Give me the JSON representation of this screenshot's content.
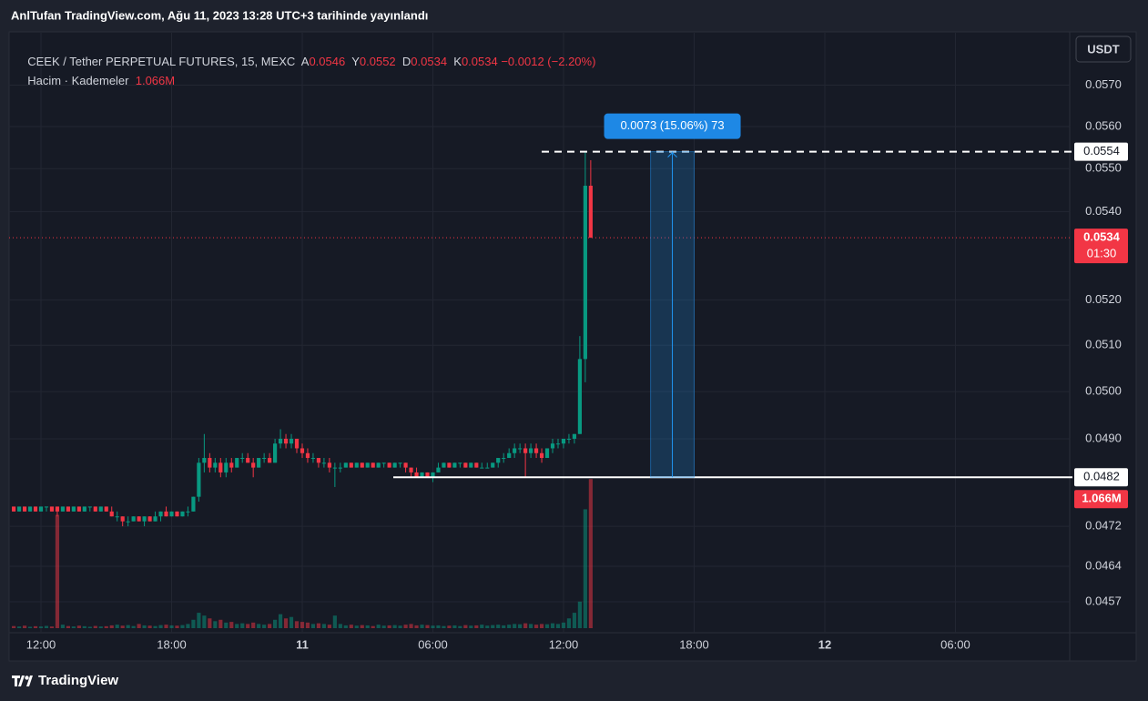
{
  "chart_data": {
    "type": "candlestick",
    "caption": "AnlTufan TradingView.com, Ağu 11, 2023 13:28 UTC+3 tarihinde yayınlandı",
    "title": "CEEK / Tether PERPETUAL FUTURES, 15, MEXC",
    "legend_ohlc": [
      {
        "label": "A",
        "value": 0.0546
      },
      {
        "label": "Y",
        "value": 0.0552
      },
      {
        "label": "D",
        "value": 0.0534
      },
      {
        "label": "K",
        "value": 0.0534
      }
    ],
    "change_label": "−0.0012 (−2.20%)",
    "volume_title": "Hacim · Kademeler",
    "volume_last": {
      "value": 1066000,
      "label": "1.066M"
    },
    "currency": "USDT",
    "last_price": 0.0534,
    "countdown": "01:30",
    "brand": "TradingView",
    "up_color": "#089981",
    "down_color": "#f23645",
    "log_scale": true,
    "grid": true,
    "xlim": [
      10.62,
      59.25
    ],
    "xticks": [
      {
        "value": 12,
        "label": "12:00"
      },
      {
        "value": 18,
        "label": "18:00"
      },
      {
        "value": 24,
        "label": "11"
      },
      {
        "value": 30,
        "label": "06:00"
      },
      {
        "value": 36,
        "label": "12:00"
      },
      {
        "value": 42,
        "label": "18:00"
      },
      {
        "value": 48,
        "label": "12"
      },
      {
        "value": 54,
        "label": "06:00"
      }
    ],
    "ylim": [
      0.0451,
      0.0582
    ],
    "yticks": [
      {
        "value": 0.057,
        "label": "0.0570"
      },
      {
        "value": 0.056,
        "label": "0.0560"
      },
      {
        "value": 0.055,
        "label": "0.0550"
      },
      {
        "value": 0.054,
        "label": "0.0540"
      },
      {
        "value": 0.052,
        "label": "0.0520"
      },
      {
        "value": 0.051,
        "label": "0.0510"
      },
      {
        "value": 0.05,
        "label": "0.0500"
      },
      {
        "value": 0.049,
        "label": "0.0490"
      },
      {
        "value": 0.0472,
        "label": "0.0472"
      },
      {
        "value": 0.0464,
        "label": "0.0464"
      },
      {
        "value": 0.0457,
        "label": "0.0457"
      }
    ],
    "y2lim": [
      0,
      4231000
    ],
    "measure": {
      "label": "0.0073 (15.06%) 73",
      "low": 0.0482,
      "high": 0.0554,
      "x": [
        40,
        42
      ]
    },
    "x": [
      10.75,
      11,
      11.25,
      11.5,
      11.75,
      12,
      12.25,
      12.5,
      12.75,
      13,
      13.25,
      13.5,
      13.75,
      14,
      14.25,
      14.5,
      14.75,
      15,
      15.25,
      15.5,
      15.75,
      16,
      16.25,
      16.5,
      16.75,
      17,
      17.25,
      17.5,
      17.75,
      18,
      18.25,
      18.5,
      18.75,
      19,
      19.25,
      19.5,
      19.75,
      20,
      20.25,
      20.5,
      20.75,
      21,
      21.25,
      21.5,
      21.75,
      22,
      22.25,
      22.5,
      22.75,
      23,
      23.25,
      23.5,
      23.75,
      24,
      24.25,
      24.5,
      24.75,
      25,
      25.25,
      25.5,
      25.75,
      26,
      26.25,
      26.5,
      26.75,
      27,
      27.25,
      27.5,
      27.75,
      28,
      28.25,
      28.5,
      28.75,
      29,
      29.25,
      29.5,
      29.75,
      30,
      30.25,
      30.5,
      30.75,
      31,
      31.25,
      31.5,
      31.75,
      32,
      32.25,
      32.5,
      32.75,
      33,
      33.25,
      33.5,
      33.75,
      34,
      34.25,
      34.5,
      34.75,
      35,
      35.25,
      35.5,
      35.75,
      36,
      36.25,
      36.5,
      36.75,
      37,
      37.25
    ],
    "ohlc": [
      [
        0.0476,
        0.0476,
        0.0475,
        0.0475
      ],
      [
        0.0475,
        0.0476,
        0.0475,
        0.0476
      ],
      [
        0.0476,
        0.0476,
        0.0475,
        0.0475
      ],
      [
        0.0475,
        0.0476,
        0.0475,
        0.0476
      ],
      [
        0.0476,
        0.0476,
        0.0475,
        0.0475
      ],
      [
        0.0475,
        0.0476,
        0.0475,
        0.0476
      ],
      [
        0.0476,
        0.0476,
        0.0475,
        0.0476
      ],
      [
        0.0476,
        0.0476,
        0.0475,
        0.0475
      ],
      [
        0.0476,
        0.0476,
        0.0474,
        0.0475
      ],
      [
        0.0475,
        0.0476,
        0.0475,
        0.0476
      ],
      [
        0.0476,
        0.0476,
        0.0475,
        0.0475
      ],
      [
        0.0475,
        0.0476,
        0.0475,
        0.0476
      ],
      [
        0.0476,
        0.0476,
        0.0475,
        0.0475
      ],
      [
        0.0475,
        0.0476,
        0.0475,
        0.0476
      ],
      [
        0.0476,
        0.0476,
        0.0475,
        0.0476
      ],
      [
        0.0476,
        0.0476,
        0.0475,
        0.0475
      ],
      [
        0.0475,
        0.0476,
        0.0475,
        0.0476
      ],
      [
        0.0476,
        0.0476,
        0.0475,
        0.0475
      ],
      [
        0.0475,
        0.0476,
        0.0474,
        0.0474
      ],
      [
        0.0474,
        0.0475,
        0.0473,
        0.0474
      ],
      [
        0.0474,
        0.0474,
        0.0472,
        0.0473
      ],
      [
        0.0473,
        0.0474,
        0.0472,
        0.0473
      ],
      [
        0.0473,
        0.0474,
        0.0473,
        0.0474
      ],
      [
        0.0474,
        0.0474,
        0.0473,
        0.0473
      ],
      [
        0.0473,
        0.0474,
        0.0472,
        0.0474
      ],
      [
        0.0474,
        0.0474,
        0.0473,
        0.0473
      ],
      [
        0.0473,
        0.0475,
        0.0473,
        0.0474
      ],
      [
        0.0474,
        0.0475,
        0.0473,
        0.0475
      ],
      [
        0.0475,
        0.0476,
        0.0474,
        0.0474
      ],
      [
        0.0474,
        0.0475,
        0.0474,
        0.0475
      ],
      [
        0.0475,
        0.0475,
        0.0474,
        0.0474
      ],
      [
        0.0474,
        0.0475,
        0.0474,
        0.0475
      ],
      [
        0.0475,
        0.0476,
        0.0474,
        0.0475
      ],
      [
        0.0475,
        0.0478,
        0.0475,
        0.0478
      ],
      [
        0.0478,
        0.0486,
        0.0477,
        0.0485
      ],
      [
        0.0485,
        0.0491,
        0.0483,
        0.0486
      ],
      [
        0.0486,
        0.0487,
        0.0483,
        0.0484
      ],
      [
        0.0484,
        0.0486,
        0.0483,
        0.0485
      ],
      [
        0.0485,
        0.0486,
        0.0482,
        0.0483
      ],
      [
        0.0483,
        0.0486,
        0.0482,
        0.0485
      ],
      [
        0.0485,
        0.0486,
        0.0483,
        0.0484
      ],
      [
        0.0484,
        0.0486,
        0.0484,
        0.0486
      ],
      [
        0.0486,
        0.0487,
        0.0485,
        0.0486
      ],
      [
        0.0486,
        0.0487,
        0.0485,
        0.0485
      ],
      [
        0.0485,
        0.0486,
        0.0482,
        0.0484
      ],
      [
        0.0484,
        0.0486,
        0.0484,
        0.0486
      ],
      [
        0.0486,
        0.0487,
        0.0485,
        0.0486
      ],
      [
        0.0486,
        0.0487,
        0.0485,
        0.0485
      ],
      [
        0.0485,
        0.049,
        0.0485,
        0.0489
      ],
      [
        0.0489,
        0.0492,
        0.0488,
        0.049
      ],
      [
        0.049,
        0.0491,
        0.0488,
        0.0489
      ],
      [
        0.0489,
        0.0491,
        0.0488,
        0.049
      ],
      [
        0.049,
        0.049,
        0.0487,
        0.0488
      ],
      [
        0.0488,
        0.0489,
        0.0486,
        0.0487
      ],
      [
        0.0487,
        0.0488,
        0.0485,
        0.0486
      ],
      [
        0.0486,
        0.0487,
        0.0485,
        0.0486
      ],
      [
        0.0486,
        0.0486,
        0.0484,
        0.0485
      ],
      [
        0.0485,
        0.0486,
        0.0484,
        0.0485
      ],
      [
        0.0485,
        0.0486,
        0.0483,
        0.0484
      ],
      [
        0.0484,
        0.0485,
        0.048,
        0.0484
      ],
      [
        0.0484,
        0.0485,
        0.0483,
        0.0484
      ],
      [
        0.0484,
        0.0485,
        0.0484,
        0.0485
      ],
      [
        0.0485,
        0.0485,
        0.0484,
        0.0484
      ],
      [
        0.0484,
        0.0485,
        0.0484,
        0.0485
      ],
      [
        0.0485,
        0.0485,
        0.0484,
        0.0484
      ],
      [
        0.0484,
        0.0485,
        0.0484,
        0.0485
      ],
      [
        0.0485,
        0.0485,
        0.0484,
        0.0484
      ],
      [
        0.0484,
        0.0485,
        0.0484,
        0.0485
      ],
      [
        0.0485,
        0.0485,
        0.0484,
        0.0485
      ],
      [
        0.0485,
        0.0485,
        0.0484,
        0.0484
      ],
      [
        0.0484,
        0.0485,
        0.0484,
        0.0485
      ],
      [
        0.0485,
        0.0485,
        0.0484,
        0.0485
      ],
      [
        0.0485,
        0.0485,
        0.0483,
        0.0484
      ],
      [
        0.0484,
        0.0484,
        0.0482,
        0.0483
      ],
      [
        0.0483,
        0.0484,
        0.0482,
        0.0482
      ],
      [
        0.0482,
        0.0483,
        0.0482,
        0.0483
      ],
      [
        0.0483,
        0.0483,
        0.0482,
        0.0482
      ],
      [
        0.0482,
        0.0483,
        0.0481,
        0.0483
      ],
      [
        0.0483,
        0.0485,
        0.0483,
        0.0484
      ],
      [
        0.0484,
        0.0485,
        0.0484,
        0.0485
      ],
      [
        0.0485,
        0.0485,
        0.0484,
        0.0484
      ],
      [
        0.0484,
        0.0485,
        0.0484,
        0.0485
      ],
      [
        0.0485,
        0.0485,
        0.0484,
        0.0485
      ],
      [
        0.0485,
        0.0485,
        0.0484,
        0.0484
      ],
      [
        0.0484,
        0.0485,
        0.0484,
        0.0485
      ],
      [
        0.0485,
        0.0485,
        0.0484,
        0.0484
      ],
      [
        0.0484,
        0.0485,
        0.0484,
        0.0484
      ],
      [
        0.0484,
        0.0485,
        0.0484,
        0.0484
      ],
      [
        0.0484,
        0.0485,
        0.0484,
        0.0485
      ],
      [
        0.0485,
        0.0486,
        0.0484,
        0.0486
      ],
      [
        0.0486,
        0.0487,
        0.0485,
        0.0486
      ],
      [
        0.0486,
        0.0488,
        0.0486,
        0.0487
      ],
      [
        0.0487,
        0.0489,
        0.0486,
        0.0488
      ],
      [
        0.0488,
        0.0489,
        0.0487,
        0.0488
      ],
      [
        0.0488,
        0.0489,
        0.0482,
        0.0487
      ],
      [
        0.0487,
        0.0489,
        0.0486,
        0.0488
      ],
      [
        0.0488,
        0.0489,
        0.0486,
        0.0487
      ],
      [
        0.0487,
        0.0488,
        0.0485,
        0.0486
      ],
      [
        0.0486,
        0.0488,
        0.0486,
        0.0488
      ],
      [
        0.0488,
        0.049,
        0.0487,
        0.0489
      ],
      [
        0.0489,
        0.049,
        0.0488,
        0.0489
      ],
      [
        0.0489,
        0.049,
        0.0488,
        0.049
      ],
      [
        0.049,
        0.0491,
        0.0489,
        0.049
      ],
      [
        0.049,
        0.0491,
        0.0489,
        0.0491
      ],
      [
        0.0491,
        0.0512,
        0.0491,
        0.0507
      ],
      [
        0.0507,
        0.0554,
        0.0502,
        0.0546
      ],
      [
        0.0546,
        0.0552,
        0.0534,
        0.0534
      ]
    ],
    "volume": [
      15000,
      12000,
      18000,
      10000,
      14000,
      12000,
      16000,
      12000,
      810000,
      25000,
      15000,
      12000,
      18000,
      14000,
      10000,
      16000,
      12000,
      14000,
      20000,
      25000,
      18000,
      22000,
      15000,
      30000,
      20000,
      18000,
      15000,
      22000,
      25000,
      20000,
      18000,
      22000,
      30000,
      60000,
      110000,
      90000,
      70000,
      50000,
      60000,
      40000,
      45000,
      30000,
      35000,
      30000,
      40000,
      30000,
      25000,
      30000,
      60000,
      100000,
      70000,
      80000,
      50000,
      45000,
      40000,
      30000,
      35000,
      30000,
      25000,
      90000,
      30000,
      20000,
      25000,
      18000,
      22000,
      20000,
      15000,
      25000,
      18000,
      20000,
      22000,
      18000,
      25000,
      30000,
      20000,
      25000,
      22000,
      18000,
      20000,
      15000,
      18000,
      20000,
      15000,
      22000,
      18000,
      20000,
      25000,
      18000,
      22000,
      25000,
      20000,
      25000,
      30000,
      28000,
      35000,
      30000,
      25000,
      30000,
      28000,
      35000,
      30000,
      40000,
      70000,
      110000,
      190000,
      850000,
      1066000
    ]
  }
}
